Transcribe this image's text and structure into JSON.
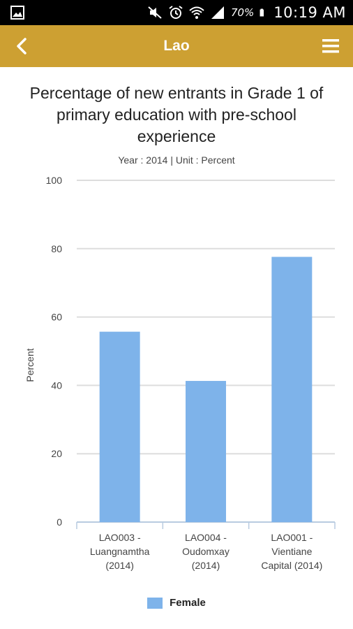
{
  "status_bar": {
    "battery": "70%",
    "time": "10:19 AM",
    "icons": [
      "image-icon",
      "mute-icon",
      "alarm-icon",
      "wifi-icon",
      "signal-icon",
      "battery-icon"
    ]
  },
  "app_bar": {
    "title": "Lao",
    "back_icon": "chevron-left-icon",
    "menu_icon": "menu-icon",
    "color": "#cda032"
  },
  "chart_data": {
    "type": "bar",
    "title": "Percentage of new entrants in Grade 1 of primary education with pre-school experience",
    "subtitle": "Year : 2014 | Unit : Percent",
    "ylabel": "Percent",
    "xlabel": "",
    "ylim": [
      0,
      100
    ],
    "yticks": [
      0,
      20,
      40,
      60,
      80,
      100
    ],
    "grid": true,
    "legend_position": "bottom",
    "categories": [
      [
        "LAO003 -",
        "Luangnamtha",
        "(2014)"
      ],
      [
        "LAO004 -",
        "Oudomxay",
        "(2014)"
      ],
      [
        "LAO001 -",
        "Vientiane",
        "Capital (2014)"
      ]
    ],
    "series": [
      {
        "name": "Female",
        "values": [
          55.7,
          41.3,
          77.6
        ],
        "color": "#7eb3ea"
      }
    ]
  }
}
